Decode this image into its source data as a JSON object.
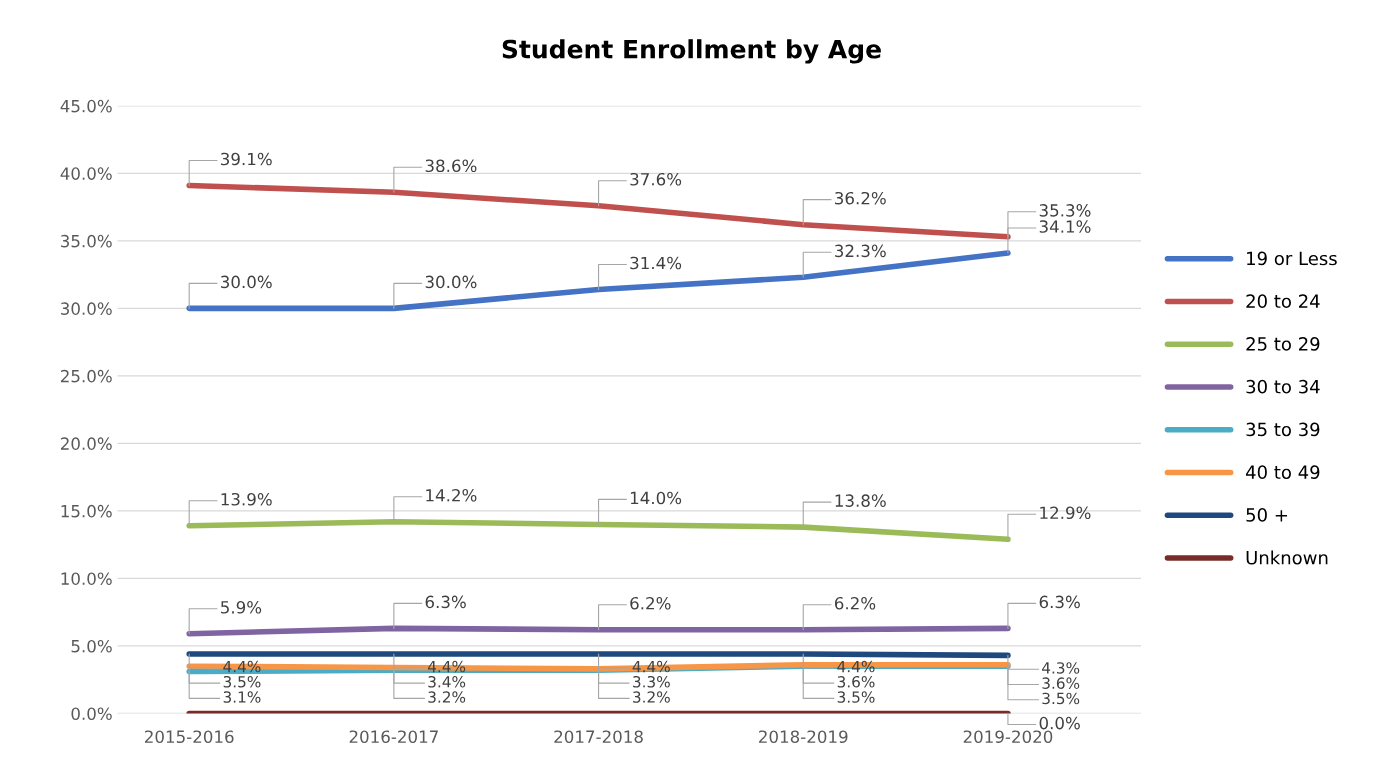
{
  "chart_data": {
    "type": "line",
    "title": "Student Enrollment by Age",
    "categories": [
      "2015-2016",
      "2016-2017",
      "2017-2018",
      "2018-2019",
      "2019-2020"
    ],
    "series": [
      {
        "name": "19 or Less",
        "color": "#4472c4",
        "values": [
          30.0,
          30.0,
          31.4,
          32.3,
          34.1
        ],
        "value_labels": [
          "30.0%",
          "30.0%",
          "31.4%",
          "32.3%",
          "34.1%"
        ]
      },
      {
        "name": "20 to 24",
        "color": "#c0504d",
        "values": [
          39.1,
          38.6,
          37.6,
          36.2,
          35.3
        ],
        "value_labels": [
          "39.1%",
          "38.6%",
          "37.6%",
          "36.2%",
          "35.3%"
        ]
      },
      {
        "name": "25 to 29",
        "color": "#9bbb59",
        "values": [
          13.9,
          14.2,
          14.0,
          13.8,
          12.9
        ],
        "value_labels": [
          "13.9%",
          "14.2%",
          "14.0%",
          "13.8%",
          "12.9%"
        ]
      },
      {
        "name": "30 to 34",
        "color": "#8064a2",
        "values": [
          5.9,
          6.3,
          6.2,
          6.2,
          6.3
        ],
        "value_labels": [
          "5.9%",
          "6.3%",
          "6.2%",
          "6.2%",
          "6.3%"
        ]
      },
      {
        "name": "35 to 39",
        "color": "#4bacc6",
        "values": [
          3.1,
          3.2,
          3.2,
          3.5,
          3.5
        ],
        "value_labels": [
          "3.1%",
          "3.2%",
          "3.2%",
          "3.5%",
          "3.5%"
        ]
      },
      {
        "name": "40 to 49",
        "color": "#f79646",
        "values": [
          3.5,
          3.4,
          3.3,
          3.6,
          3.6
        ],
        "value_labels": [
          "3.5%",
          "3.4%",
          "3.3%",
          "3.6%",
          "3.6%"
        ]
      },
      {
        "name": "50 +",
        "color": "#1f497d",
        "values": [
          4.4,
          4.4,
          4.4,
          4.4,
          4.3
        ],
        "value_labels": [
          "4.4%",
          "4.4%",
          "4.4%",
          "4.4%",
          "4.3%"
        ]
      },
      {
        "name": "Unknown",
        "color": "#772c2a",
        "values": [
          0.0,
          0.0,
          0.0,
          0.0,
          0.0
        ],
        "value_labels": [
          null,
          null,
          null,
          null,
          "0.0%"
        ]
      }
    ],
    "ylim": [
      0,
      45
    ],
    "yticks": [
      {
        "value": 0,
        "label": "0.0%"
      },
      {
        "value": 5,
        "label": "5.0%"
      },
      {
        "value": 10,
        "label": "10.0%"
      },
      {
        "value": 15,
        "label": "15.0%"
      },
      {
        "value": 20,
        "label": "20.0%"
      },
      {
        "value": 25,
        "label": "25.0%"
      },
      {
        "value": 30,
        "label": "30.0%"
      },
      {
        "value": 35,
        "label": "35.0%"
      },
      {
        "value": 40,
        "label": "40.0%"
      },
      {
        "value": 45,
        "label": "45.0%"
      }
    ],
    "grid": "y",
    "legend": "right",
    "marker": "none",
    "line_style": "solid"
  }
}
